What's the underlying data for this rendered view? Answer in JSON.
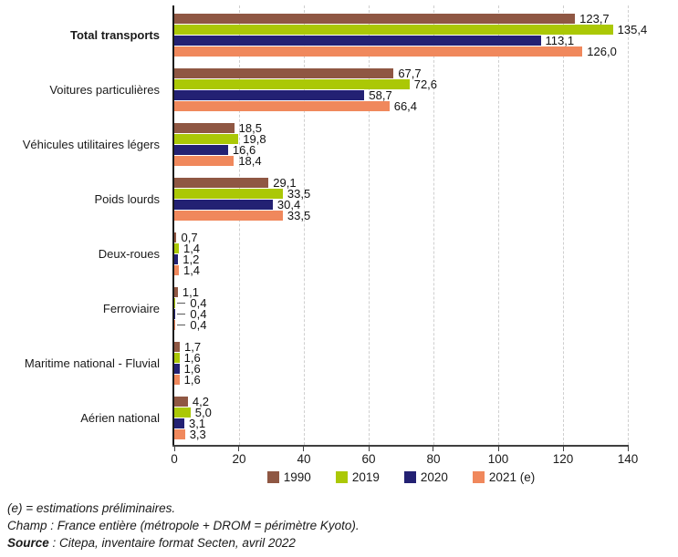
{
  "chart_data": {
    "type": "bar",
    "orientation": "horizontal",
    "title": "",
    "categories": [
      "Total transports",
      "Voitures particulières",
      "Véhicules utilitaires légers",
      "Poids lourds",
      "Deux-roues",
      "Ferroviaire",
      "Maritime national - Fluvial",
      "Aérien national"
    ],
    "series": [
      {
        "name": "1990",
        "color": "#8F5743",
        "values": [
          123.7,
          67.7,
          18.5,
          29.1,
          0.7,
          1.1,
          1.7,
          4.2
        ]
      },
      {
        "name": "2019",
        "color": "#ABC806",
        "values": [
          135.4,
          72.6,
          19.8,
          33.5,
          1.4,
          0.4,
          1.6,
          5.0
        ]
      },
      {
        "name": "2020",
        "color": "#232173",
        "values": [
          113.1,
          58.7,
          16.6,
          30.4,
          1.2,
          0.4,
          1.6,
          3.1
        ]
      },
      {
        "name": "2021 (e)",
        "color": "#F0885C",
        "values": [
          126.0,
          66.4,
          18.4,
          33.5,
          1.4,
          0.4,
          1.6,
          3.3
        ]
      }
    ],
    "xlim": [
      0,
      140
    ],
    "x_ticks": [
      0,
      20,
      40,
      60,
      80,
      100,
      120,
      140
    ],
    "grid": "vertical-dashed",
    "legend_position": "bottom-center",
    "value_label_format": "french-decimal-comma",
    "leader_line_threshold": 0.5
  },
  "footnotes": {
    "line1": "(e) = estimations préliminaires.",
    "line2": "Champ : France entière (métropole + DROM = périmètre Kyoto).",
    "line3_bold": "Source",
    "line3_rest": " : Citepa, inventaire format Secten, avril 2022"
  }
}
